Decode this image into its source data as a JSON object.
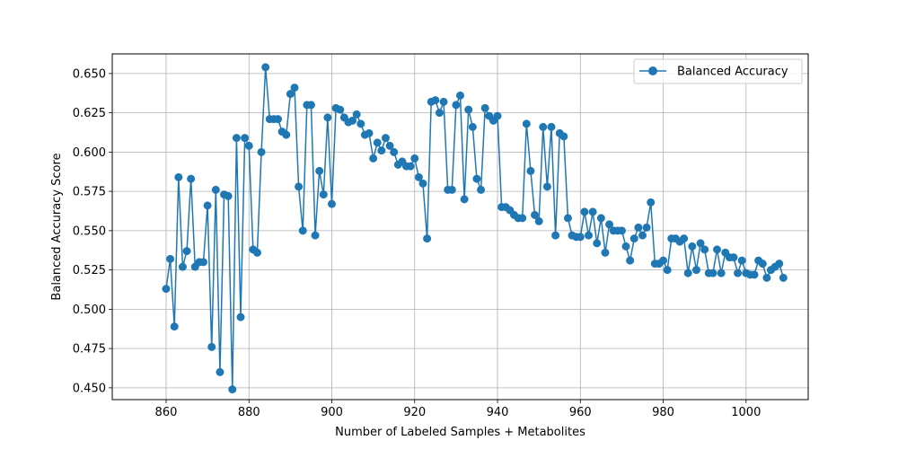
{
  "chart_data": {
    "type": "line",
    "title": "",
    "xlabel": "Number of Labeled Samples + Metabolites",
    "ylabel": "Balanced Accuracy Score",
    "xlim": [
      847,
      1015
    ],
    "ylim": [
      0.4425,
      0.6625
    ],
    "xticks": [
      860,
      880,
      900,
      920,
      940,
      960,
      980,
      1000
    ],
    "yticks": [
      0.45,
      0.475,
      0.5,
      0.525,
      0.55,
      0.575,
      0.6,
      0.625,
      0.65
    ],
    "ytick_labels": [
      "0.450",
      "0.475",
      "0.500",
      "0.525",
      "0.550",
      "0.575",
      "0.600",
      "0.625",
      "0.650"
    ],
    "grid": true,
    "legend_position": "top-right",
    "color": "#1f77b4",
    "marker": "circle",
    "series": [
      {
        "name": "Balanced Accuracy",
        "x": [
          860,
          861,
          862,
          863,
          864,
          865,
          866,
          867,
          868,
          869,
          870,
          871,
          872,
          873,
          874,
          875,
          876,
          877,
          878,
          879,
          880,
          881,
          882,
          883,
          884,
          885,
          886,
          887,
          888,
          889,
          890,
          891,
          892,
          893,
          894,
          895,
          896,
          897,
          898,
          899,
          900,
          901,
          902,
          903,
          904,
          905,
          906,
          907,
          908,
          909,
          910,
          911,
          912,
          913,
          914,
          915,
          916,
          917,
          918,
          919,
          920,
          921,
          922,
          923,
          924,
          925,
          926,
          927,
          928,
          929,
          930,
          931,
          932,
          933,
          934,
          935,
          936,
          937,
          938,
          939,
          940,
          941,
          942,
          943,
          944,
          945,
          946,
          947,
          948,
          949,
          950,
          951,
          952,
          953,
          954,
          955,
          956,
          957,
          958,
          959,
          960,
          961,
          962,
          963,
          964,
          965,
          966,
          967,
          968,
          969,
          970,
          971,
          972,
          973,
          974,
          975,
          976,
          977,
          978,
          979,
          980,
          981,
          982,
          983,
          984,
          985,
          986,
          987,
          988,
          989,
          990,
          991,
          992,
          993,
          994,
          995,
          996,
          997,
          998,
          999,
          1000,
          1001,
          1002,
          1003,
          1004,
          1005,
          1006,
          1007,
          1008,
          1009
        ],
        "y": [
          0.513,
          0.532,
          0.489,
          0.584,
          0.527,
          0.537,
          0.583,
          0.527,
          0.53,
          0.53,
          0.566,
          0.476,
          0.576,
          0.46,
          0.573,
          0.572,
          0.449,
          0.609,
          0.495,
          0.609,
          0.604,
          0.538,
          0.536,
          0.6,
          0.654,
          0.621,
          0.621,
          0.621,
          0.613,
          0.611,
          0.637,
          0.641,
          0.578,
          0.55,
          0.63,
          0.63,
          0.547,
          0.588,
          0.573,
          0.622,
          0.567,
          0.628,
          0.627,
          0.622,
          0.619,
          0.62,
          0.624,
          0.618,
          0.611,
          0.612,
          0.596,
          0.606,
          0.601,
          0.609,
          0.604,
          0.6,
          0.592,
          0.594,
          0.591,
          0.591,
          0.596,
          0.584,
          0.58,
          0.545,
          0.632,
          0.633,
          0.625,
          0.632,
          0.576,
          0.576,
          0.63,
          0.636,
          0.57,
          0.627,
          0.616,
          0.583,
          0.576,
          0.628,
          0.623,
          0.62,
          0.623,
          0.565,
          0.565,
          0.563,
          0.56,
          0.558,
          0.558,
          0.618,
          0.588,
          0.56,
          0.556,
          0.616,
          0.578,
          0.616,
          0.547,
          0.612,
          0.61,
          0.558,
          0.547,
          0.546,
          0.546,
          0.562,
          0.547,
          0.562,
          0.542,
          0.558,
          0.536,
          0.554,
          0.55,
          0.55,
          0.55,
          0.54,
          0.531,
          0.545,
          0.552,
          0.547,
          0.552,
          0.568,
          0.529,
          0.529,
          0.531,
          0.525,
          0.545,
          0.545,
          0.543,
          0.545,
          0.523,
          0.54,
          0.525,
          0.542,
          0.538,
          0.523,
          0.523,
          0.538,
          0.523,
          0.536,
          0.533,
          0.533,
          0.523,
          0.531,
          0.523,
          0.522,
          0.522,
          0.531,
          0.529,
          0.52,
          0.525,
          0.527,
          0.529,
          0.52
        ]
      }
    ]
  }
}
